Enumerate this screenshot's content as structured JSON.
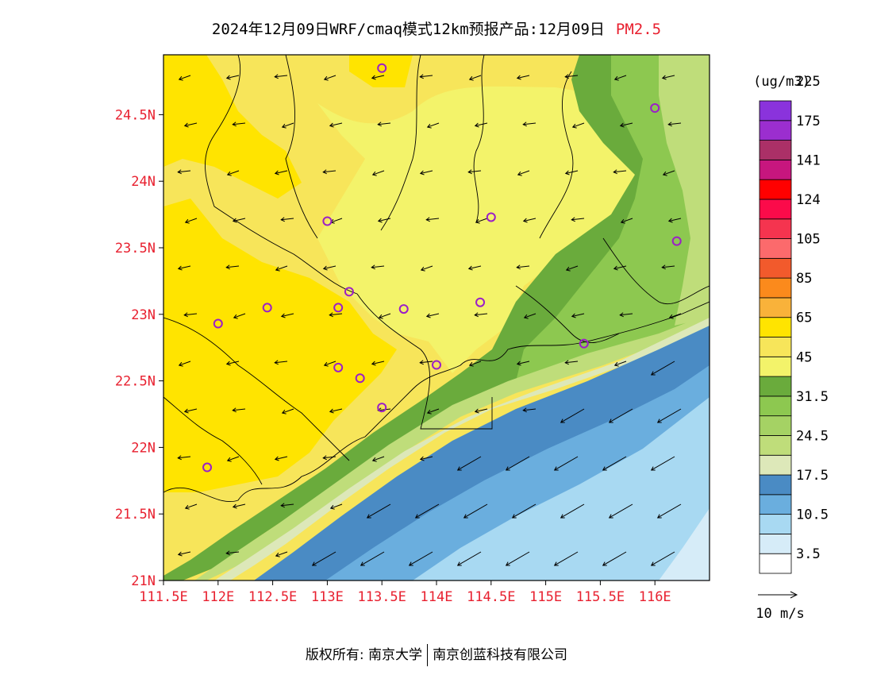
{
  "header": {
    "title_main": "2024年12月09日WRF/cmaq模式12km预报产品:12月09日",
    "title_pollutant": "PM2.5"
  },
  "map": {
    "lat_ticks": [
      "24.5N",
      "24N",
      "23.5N",
      "23N",
      "22.5N",
      "22N",
      "21.5N",
      "21N"
    ],
    "lon_ticks": [
      "111.5E",
      "112E",
      "112.5E",
      "113E",
      "113.5E",
      "114E",
      "114.5E",
      "115E",
      "115.5E",
      "116E"
    ],
    "lon_range": [
      111.5,
      116.5
    ],
    "lat_range": [
      21,
      24.95
    ],
    "station_marker_color": "#9b1fc7",
    "stations": [
      {
        "lon": 113.5,
        "lat": 24.85
      },
      {
        "lon": 116.0,
        "lat": 24.55
      },
      {
        "lon": 113.0,
        "lat": 23.7
      },
      {
        "lon": 114.5,
        "lat": 23.73
      },
      {
        "lon": 116.2,
        "lat": 23.55
      },
      {
        "lon": 113.2,
        "lat": 23.17
      },
      {
        "lon": 112.45,
        "lat": 23.05
      },
      {
        "lon": 113.1,
        "lat": 23.05
      },
      {
        "lon": 113.7,
        "lat": 23.04
      },
      {
        "lon": 114.4,
        "lat": 23.09
      },
      {
        "lon": 112.0,
        "lat": 22.93
      },
      {
        "lon": 113.1,
        "lat": 22.6
      },
      {
        "lon": 113.3,
        "lat": 22.52
      },
      {
        "lon": 114.0,
        "lat": 22.62
      },
      {
        "lon": 115.35,
        "lat": 22.78
      },
      {
        "lon": 113.5,
        "lat": 22.3
      },
      {
        "lon": 111.9,
        "lat": 21.85
      }
    ],
    "colors": {
      "yellow": "#ffe400",
      "yellow_light": "#f7e55a",
      "yellow_pale": "#f3f36a",
      "green_dark": "#6aab3c",
      "green": "#8dc850",
      "green_light": "#bfdd7a",
      "green_pale": "#dde8b9",
      "blue_dark": "#4a8bc4",
      "blue": "#6aaede",
      "blue_light": "#a8d9f2",
      "blue_pale": "#d6ecf8"
    }
  },
  "legend": {
    "unit": "(ug/m3)",
    "swatches": [
      "#ffffff",
      "#d6ecf8",
      "#a8d9f2",
      "#6aaede",
      "#4a8bc4",
      "#dde8b9",
      "#bfdd7a",
      "#a5d264",
      "#8dc850",
      "#6aab3c",
      "#f3f36a",
      "#f7e55a",
      "#ffe400",
      "#f9b23a",
      "#fb8a1c",
      "#f25a2c",
      "#fc6a6c",
      "#f5344f",
      "#fb0b4a",
      "#ff0000",
      "#c7167e",
      "#ab3067",
      "#9b2ecf",
      "#8a33dc"
    ],
    "labels": [
      "3.5",
      "10.5",
      "17.5",
      "24.5",
      "31.5",
      "45",
      "65",
      "85",
      "105",
      "124",
      "141",
      "175",
      "225"
    ]
  },
  "wind_scale": {
    "label": "10 m/s"
  },
  "footer": {
    "copyright": "版权所有: 南京大学",
    "company": "南京创蓝科技有限公司"
  }
}
